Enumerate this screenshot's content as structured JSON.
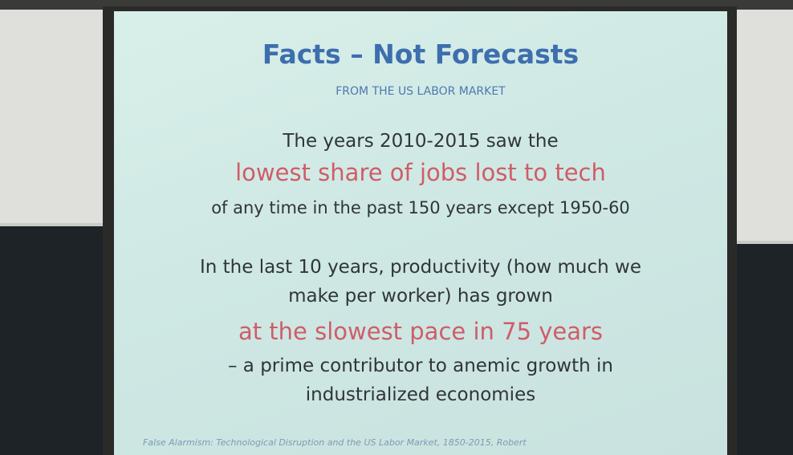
{
  "slide": {
    "title": "Facts – Not Forecasts",
    "subtitle": "FROM THE US LABOR MARKET",
    "paragraphs": [
      [
        "The years 2010-2015 saw the",
        "lowest share of jobs lost to tech",
        "of any time in the past 150 years except 1950-60"
      ],
      [
        "In the last 10 years, productivity (how much we",
        "make per worker) has grown",
        "at the slowest pace in 75 years",
        "– a prime contributor to anemic growth in",
        "industrialized economies"
      ]
    ],
    "citation": "False Alarmism: Technological Disruption and the US Labor Market, 1850-2015, Robert"
  }
}
